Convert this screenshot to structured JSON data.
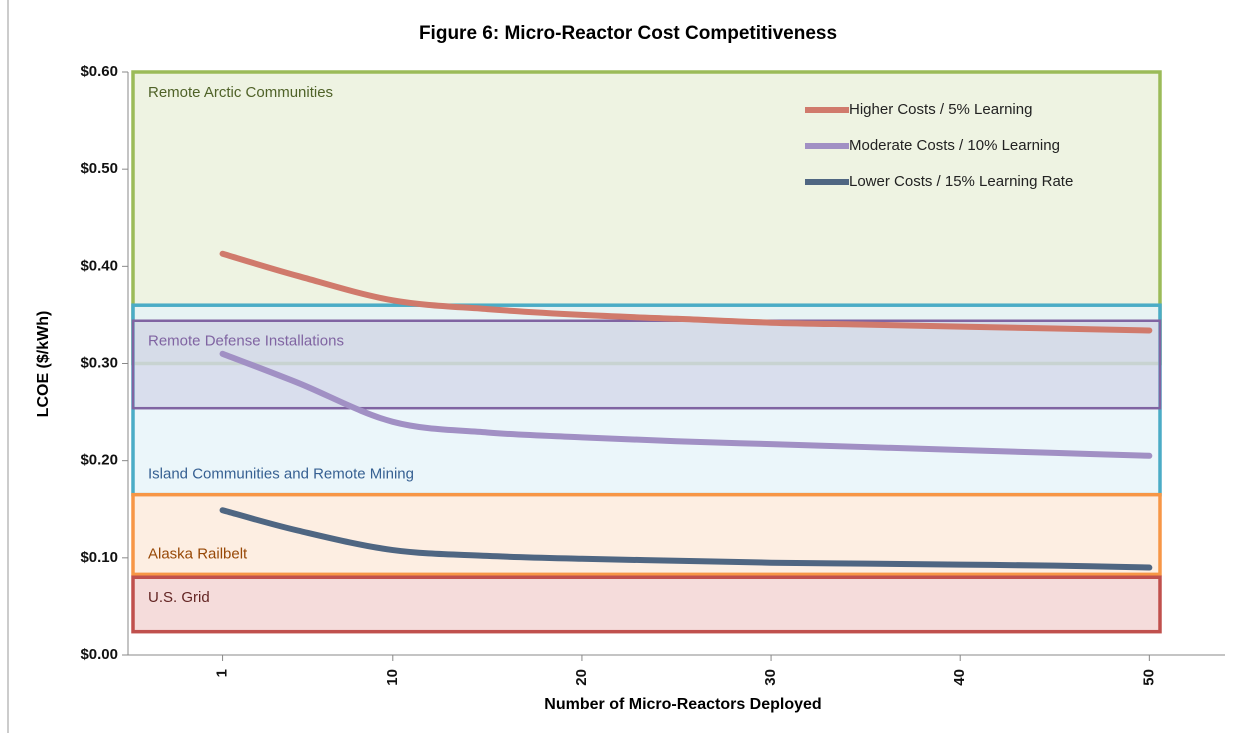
{
  "chart_data": {
    "type": "line",
    "title": "Figure 6: Micro-Reactor Cost Competitiveness",
    "x_label": "Number of Micro-Reactors  Deployed",
    "y_label": "LCOE ($/kWh)",
    "x": [
      1,
      5,
      10,
      15,
      20,
      25,
      30,
      35,
      40,
      45,
      50
    ],
    "series": [
      {
        "name": "Higher Costs / 5% Learning",
        "color": "#d07a6c",
        "values": [
          0.413,
          0.39,
          0.365,
          0.356,
          0.35,
          0.346,
          0.342,
          0.34,
          0.338,
          0.336,
          0.334
        ]
      },
      {
        "name": "Moderate Costs / 10% Learning",
        "color": "#a190c4",
        "values": [
          0.31,
          0.28,
          0.24,
          0.229,
          0.224,
          0.22,
          0.217,
          0.214,
          0.211,
          0.208,
          0.205
        ]
      },
      {
        "name": "Lower Costs / 15% Learning Rate",
        "color": "#4f6682",
        "values": [
          0.149,
          0.128,
          0.108,
          0.102,
          0.099,
          0.097,
          0.095,
          0.094,
          0.093,
          0.092,
          0.09
        ]
      }
    ],
    "bands": [
      {
        "label": "Remote Arctic Communities",
        "range": [
          0.3,
          0.6
        ],
        "color": "#9bbb59",
        "fill": "#eef3e2",
        "text_color": "#4f6228"
      },
      {
        "label": "Island Communities and Remote Mining",
        "range": [
          0.165,
          0.36
        ],
        "color": "#4bacc6",
        "fill": "#e4f3f8",
        "text_color": "#366092"
      },
      {
        "label": "Remote Defense Installations",
        "range": [
          0.254,
          0.344
        ],
        "color": "#8064a2",
        "fill": "#b7b3d4",
        "text_color": "#8064a2"
      },
      {
        "label": "Alaska Railbelt",
        "range": [
          0.083,
          0.165
        ],
        "color": "#f79646",
        "fill": "#fdeee2",
        "text_color": "#974806"
      },
      {
        "label": "U.S. Grid",
        "range": [
          0.024,
          0.08
        ],
        "color": "#c0504d",
        "fill": "#f5dcdb",
        "text_color": "#632523"
      }
    ],
    "xlim": [
      -4,
      54
    ],
    "xticks": [
      1,
      10,
      20,
      30,
      40,
      50
    ],
    "ylim": [
      0,
      0.6
    ],
    "yticks": [
      {
        "value": 0,
        "label": "$0.00"
      },
      {
        "value": 0.1,
        "label": "$0.10"
      },
      {
        "value": 0.2,
        "label": "$0.20"
      },
      {
        "value": 0.3,
        "label": "$0.30"
      },
      {
        "value": 0.4,
        "label": "$0.40"
      },
      {
        "value": 0.5,
        "label": "$0.50"
      },
      {
        "value": 0.6,
        "label": "$0.60"
      }
    ],
    "legend": "upper right"
  }
}
